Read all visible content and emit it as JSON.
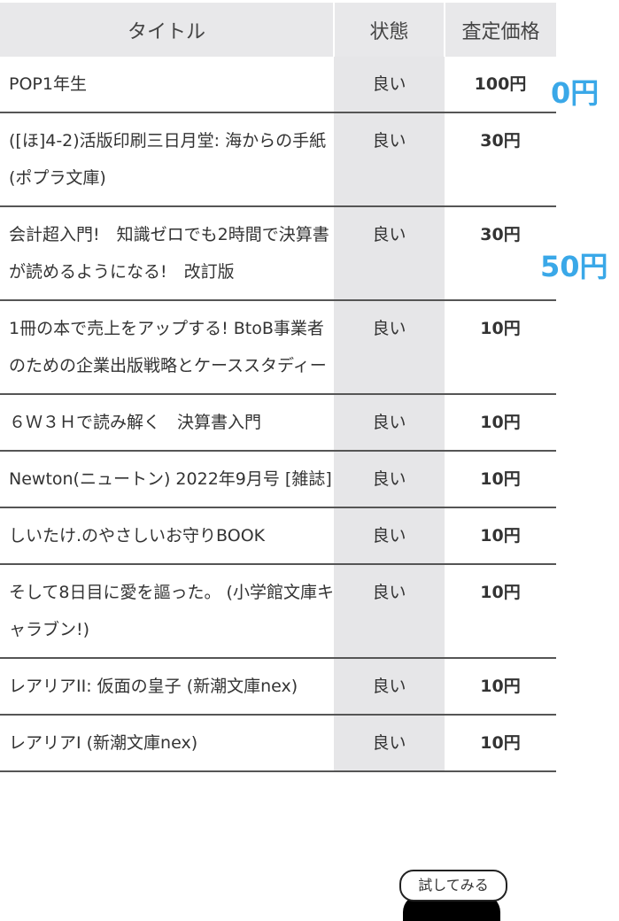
{
  "table": {
    "headers": [
      "タイトル",
      "状態",
      "査定価格"
    ],
    "rows": [
      {
        "title": "POP1年生",
        "status": "良い",
        "price": "100円"
      },
      {
        "title": "([ほ]4-2)活版印刷三日月堂: 海からの手紙 (ポプラ文庫)",
        "status": "良い",
        "price": "30円"
      },
      {
        "title": "会計超入門!　知識ゼロでも2時間で決算書が読めるようになる!　改訂版",
        "status": "良い",
        "price": "30円"
      },
      {
        "title": "1冊の本で売上をアップする! BtoB事業者のための企業出版戦略とケーススタディー",
        "status": "良い",
        "price": "10円"
      },
      {
        "title": "６Ｗ３Ｈで読み解く　決算書入門",
        "status": "良い",
        "price": "10円"
      },
      {
        "title": "Newton(ニュートン) 2022年9月号 [雑誌]",
        "status": "良い",
        "price": "10円"
      },
      {
        "title": "しいたけ.のやさしいお守りBOOK",
        "status": "良い",
        "price": "10円"
      },
      {
        "title": "そして8日目に愛を謳った。 (小学館文庫キャラブン!)",
        "status": "良い",
        "price": "10円"
      },
      {
        "title": "レアリアII: 仮面の皇子 (新潮文庫nex)",
        "status": "良い",
        "price": "10円"
      },
      {
        "title": "レアリアI (新潮文庫nex)",
        "status": "良い",
        "price": "10円"
      }
    ]
  },
  "annotations": [
    "0円",
    "50円"
  ],
  "try_button": "試してみる",
  "colors": {
    "annotation": "#3aa8e8",
    "header_bg": "#e8e8ea",
    "status_col_bg": "#e6e6e8"
  }
}
